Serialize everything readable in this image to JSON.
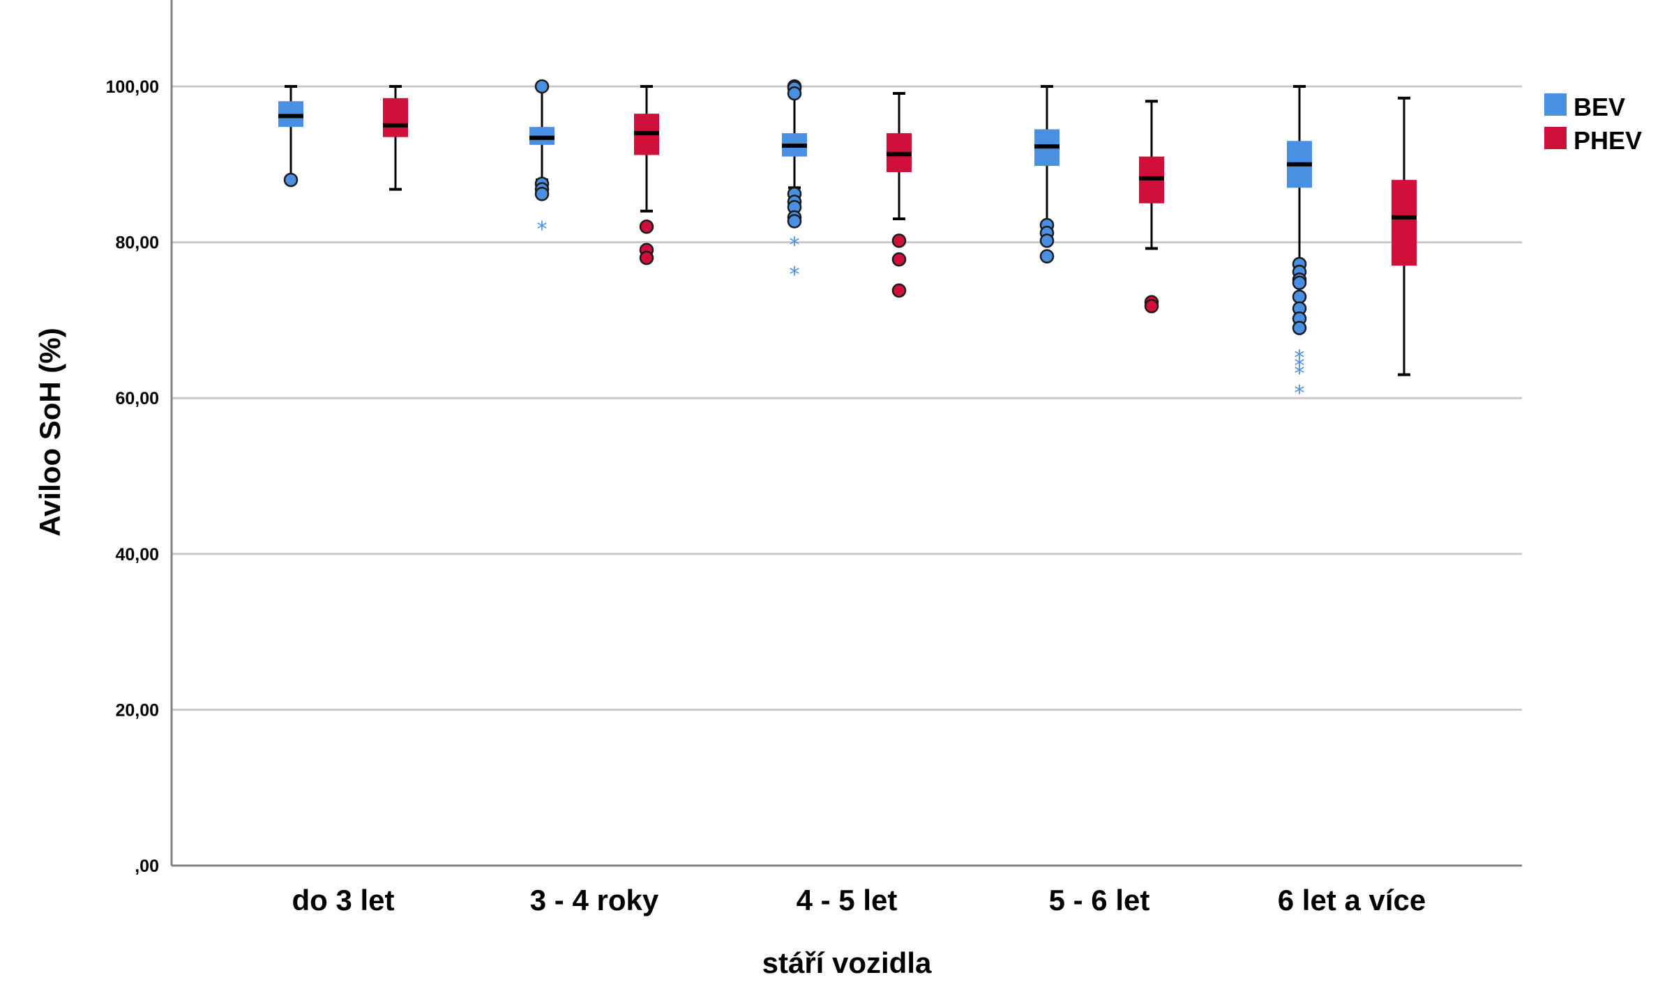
{
  "chart_data": {
    "type": "boxplot",
    "ylabel": "Aviloo SoH (%)",
    "xlabel": "stáří vozidla",
    "ylim": [
      0,
      110
    ],
    "yticks": [
      0,
      20,
      40,
      60,
      80,
      100
    ],
    "ytick_labels": [
      ",00",
      "20,00",
      "40,00",
      "60,00",
      "80,00",
      "100,00"
    ],
    "categories": [
      "do 3 let",
      "3 - 4 roky",
      "4 - 5 let",
      "5 - 6 let",
      "6 let a více"
    ],
    "grid": true,
    "legend_position": "right",
    "series": [
      {
        "name": "BEV",
        "color": "#4a90e2",
        "boxes": [
          {
            "min": 88,
            "q1": 94.8,
            "median": 96.2,
            "q3": 98.1,
            "max": 100,
            "outliers": [
              88
            ],
            "extremes": []
          },
          {
            "min": 88,
            "q1": 92.5,
            "median": 93.4,
            "q3": 94.8,
            "max": 100,
            "outliers": [
              100,
              87.5,
              86.8,
              86.2
            ],
            "extremes": [
              82
            ]
          },
          {
            "min": 87,
            "q1": 91,
            "median": 92.4,
            "q3": 94,
            "max": 100,
            "outliers": [
              100,
              99.8,
              99.1,
              86.2,
              85.2,
              84.5,
              83.2,
              82.7
            ],
            "extremes": [
              80,
              76.2
            ]
          },
          {
            "min": 82.5,
            "q1": 89.8,
            "median": 92.3,
            "q3": 94.5,
            "max": 100,
            "outliers": [
              82.2,
              81.2,
              80.2,
              78.2
            ],
            "extremes": []
          },
          {
            "min": 77.5,
            "q1": 87,
            "median": 90,
            "q3": 93,
            "max": 100,
            "outliers": [
              77.2,
              76.2,
              75.2,
              74.8,
              73,
              71.5,
              70.2,
              69
            ],
            "extremes": [
              65.5,
              64.5,
              63.5,
              61
            ]
          }
        ]
      },
      {
        "name": "PHEV",
        "color": "#d0103a",
        "boxes": [
          {
            "min": 86.8,
            "q1": 93.5,
            "median": 95,
            "q3": 98.5,
            "max": 100,
            "outliers": [],
            "extremes": []
          },
          {
            "min": 84,
            "q1": 91.2,
            "median": 94,
            "q3": 96.5,
            "max": 100,
            "outliers": [
              82,
              79,
              78
            ],
            "extremes": []
          },
          {
            "min": 83,
            "q1": 89,
            "median": 91.3,
            "q3": 94,
            "max": 99.1,
            "outliers": [
              80.2,
              77.8,
              73.8
            ],
            "extremes": []
          },
          {
            "min": 79.2,
            "q1": 85,
            "median": 88.2,
            "q3": 91,
            "max": 98.1,
            "outliers": [
              72.3,
              71.8
            ],
            "extremes": []
          },
          {
            "min": 63,
            "q1": 77,
            "median": 83.2,
            "q3": 88,
            "max": 98.5,
            "outliers": [],
            "extremes": []
          }
        ]
      }
    ]
  }
}
